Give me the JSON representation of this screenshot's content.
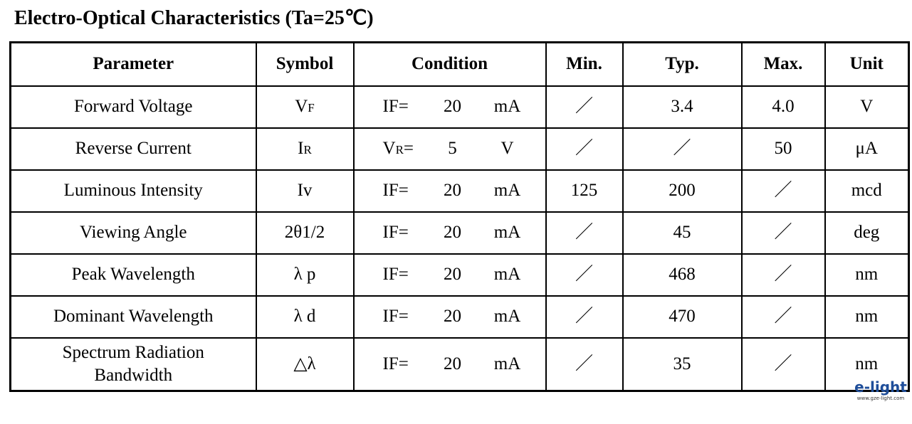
{
  "title": "Electro-Optical Characteristics (Ta=25℃)",
  "table": {
    "header": [
      "Parameter",
      "Symbol",
      "Condition",
      "Min.",
      "Typ.",
      "Max.",
      "Unit"
    ],
    "rows": [
      {
        "parameter": "Forward  Voltage",
        "symbol": [
          "V",
          "F"
        ],
        "condition": {
          "label": [
            "IF="
          ],
          "value": "20",
          "unit": "mA"
        },
        "min": "／",
        "typ": "3.4",
        "max": "4.0",
        "unit": "V"
      },
      {
        "parameter": "Reverse  Current",
        "symbol": [
          "I",
          "R"
        ],
        "condition": {
          "label": [
            "V",
            "R",
            "="
          ],
          "value": "5",
          "unit": "V"
        },
        "min": "／",
        "typ": "／",
        "max": "50",
        "unit": "μA"
      },
      {
        "parameter": "Luminous Intensity",
        "symbol": [
          "Iv"
        ],
        "condition": {
          "label": [
            "IF="
          ],
          "value": "20",
          "unit": "mA"
        },
        "min": "125",
        "typ": "200",
        "max": "／",
        "unit": "mcd"
      },
      {
        "parameter": "Viewing Angle",
        "symbol": [
          "2θ1/2"
        ],
        "condition": {
          "label": [
            "IF="
          ],
          "value": "20",
          "unit": "mA"
        },
        "min": "／",
        "typ": "45",
        "max": "／",
        "unit": "deg"
      },
      {
        "parameter": "Peak Wavelength",
        "symbol": [
          "λ p"
        ],
        "condition": {
          "label": [
            "IF="
          ],
          "value": "20",
          "unit": "mA"
        },
        "min": "／",
        "typ": "468",
        "max": "／",
        "unit": "nm"
      },
      {
        "parameter": "Dominant Wavelength",
        "symbol": [
          "λ d"
        ],
        "condition": {
          "label": [
            "IF="
          ],
          "value": "20",
          "unit": "mA"
        },
        "min": "／",
        "typ": "470",
        "max": "／",
        "unit": "nm"
      },
      {
        "parameter": "Spectrum Radiation\nBandwidth",
        "symbol": [
          "△λ"
        ],
        "condition": {
          "label": [
            "IF="
          ],
          "value": "20",
          "unit": "mA"
        },
        "min": "／",
        "typ": "35",
        "max": "／",
        "unit": "nm"
      }
    ]
  },
  "logo": {
    "brand": "e-light",
    "url": "www.gze-light.com"
  }
}
